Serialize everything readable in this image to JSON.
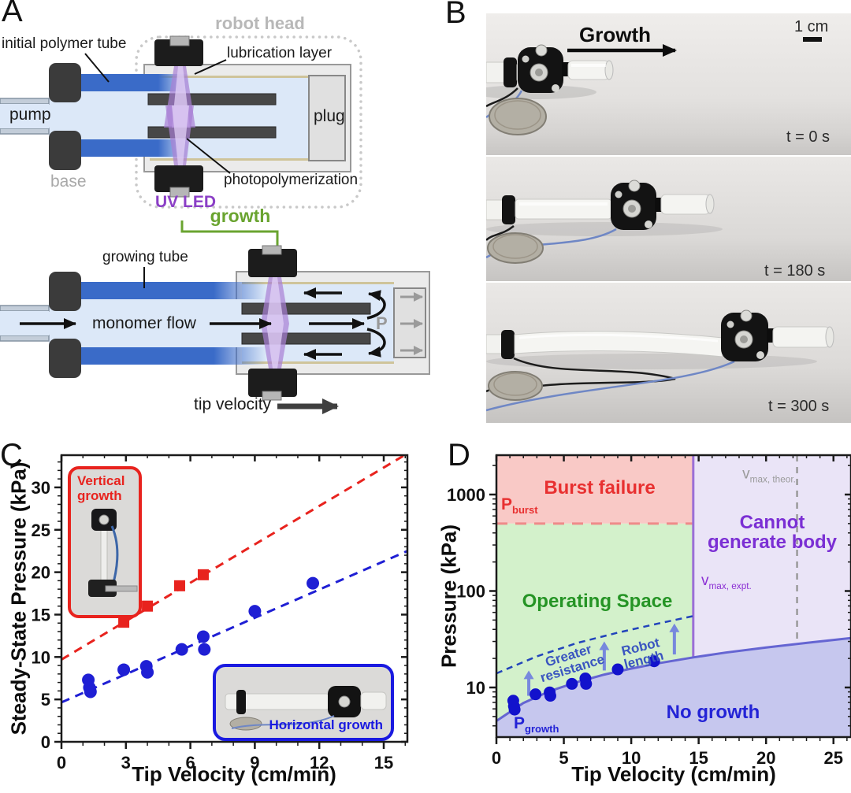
{
  "figure": {
    "background": "#ffffff"
  },
  "panels": {
    "a": {
      "letter": "A",
      "labels": {
        "robot_head": "robot head",
        "initial_polymer_tube": "initial polymer tube",
        "lubrication_layer": "lubrication layer",
        "pump": "pump",
        "plug": "plug",
        "base": "base",
        "uv_led": "UV LED",
        "photopolymerization": "photopolymerization",
        "growth": "growth",
        "growing_tube": "growing tube",
        "monomer_flow": "monomer flow",
        "pressure_symbol": "P",
        "tip_velocity": "tip velocity"
      },
      "colors": {
        "tube_blue": "#3a6bc8",
        "fluid_blue": "#dce8f8",
        "beam_purple": "#a87fd4",
        "shell_gray": "#ebebeb",
        "plug_gray": "#e0e0e0",
        "dark_bar": "#474747",
        "block_black": "#3b3b3b",
        "growth_green": "#6aa430",
        "uv_purple": "#8b3fc6"
      }
    },
    "b": {
      "letter": "B",
      "growth_arrow_label": "Growth",
      "scale_bar_label": "1 cm",
      "frames": [
        {
          "time_label": "t = 0 s"
        },
        {
          "time_label": "t = 180 s"
        },
        {
          "time_label": "t = 300 s"
        }
      ]
    },
    "c": {
      "letter": "C",
      "inset_vertical_label": "Vertical growth",
      "inset_horizontal_label": "Horizontal growth"
    },
    "d": {
      "letter": "D"
    }
  },
  "chart_data": [
    {
      "id": "panel_c",
      "type": "scatter",
      "title": "",
      "xlabel": "Tip Velocity (cm/min)",
      "ylabel": "Steady-State Pressure (kPa)",
      "xlim": [
        0,
        16.1
      ],
      "ylim": [
        0,
        33.8
      ],
      "xticks": [
        0,
        3,
        6,
        9,
        12,
        15
      ],
      "yticks": [
        0,
        5,
        10,
        15,
        20,
        25,
        30
      ],
      "x_minor_step": 1,
      "y_minor_step": 1,
      "grid": false,
      "legend_position": "insets",
      "series": [
        {
          "name": "Vertical growth",
          "marker": "square",
          "color": "#e8231e",
          "points": [
            [
              2.9,
              14.1
            ],
            [
              4.0,
              16.0
            ],
            [
              5.5,
              18.4
            ],
            [
              6.6,
              19.7
            ]
          ],
          "fit_line": {
            "style": "dashed",
            "from": [
              0,
              9.7
            ],
            "to": [
              16.1,
              34.0
            ]
          }
        },
        {
          "name": "Horizontal growth",
          "marker": "circle",
          "color": "#1f1fd4",
          "points": [
            [
              1.25,
              7.3
            ],
            [
              1.3,
              6.4
            ],
            [
              1.35,
              5.9
            ],
            [
              2.9,
              8.5
            ],
            [
              3.95,
              8.9
            ],
            [
              4.0,
              8.2
            ],
            [
              5.6,
              10.9
            ],
            [
              6.6,
              12.4
            ],
            [
              6.65,
              10.9
            ],
            [
              9.0,
              15.4
            ],
            [
              11.7,
              18.7
            ]
          ],
          "fit_line": {
            "style": "dashed",
            "from": [
              0,
              4.65
            ],
            "to": [
              16.1,
              22.5
            ]
          }
        }
      ]
    },
    {
      "id": "panel_d",
      "type": "scatter",
      "scale": "log-y",
      "title": "",
      "xlabel": "Tip Velocity (cm/min)",
      "ylabel": "Pressure (kPa)",
      "xlim": [
        0,
        26.3
      ],
      "ylim": [
        3.06,
        2560
      ],
      "xticks": [
        0,
        5,
        10,
        15,
        20,
        25
      ],
      "yticks": [
        10,
        100,
        1000
      ],
      "x_minor_step": 1,
      "boundaries": {
        "p_burst_kpa": 500,
        "p_growth_kpa": 4.5,
        "v_max_expt_cm_min": 14.6,
        "v_max_theor_cm_min": 22.3
      },
      "growth_curve": [
        [
          0,
          4.5
        ],
        [
          2,
          6.9
        ],
        [
          4,
          9.2
        ],
        [
          6,
          11.4
        ],
        [
          8,
          13.6
        ],
        [
          10,
          15.7
        ],
        [
          12,
          17.8
        ],
        [
          14.6,
          20.5
        ],
        [
          17,
          23
        ],
        [
          20,
          26
        ],
        [
          23,
          29
        ],
        [
          26.3,
          32.5
        ]
      ],
      "resistance_curve": [
        [
          0,
          14
        ],
        [
          3,
          21
        ],
        [
          6,
          29
        ],
        [
          9,
          37
        ],
        [
          12,
          46
        ],
        [
          14.6,
          55
        ]
      ],
      "arrows": [
        [
          2.4,
          8.2,
          15
        ],
        [
          8.0,
          15,
          30
        ],
        [
          13.2,
          22,
          46
        ]
      ],
      "points": [
        [
          1.25,
          7.3
        ],
        [
          1.3,
          6.4
        ],
        [
          1.35,
          5.9
        ],
        [
          2.9,
          8.5
        ],
        [
          3.95,
          8.9
        ],
        [
          4.0,
          8.2
        ],
        [
          5.6,
          10.9
        ],
        [
          6.6,
          12.4
        ],
        [
          6.65,
          10.9
        ],
        [
          9.0,
          15.4
        ],
        [
          11.7,
          18.7
        ]
      ],
      "regions": {
        "burst": "Burst failure",
        "cannot_line1": "Cannot",
        "cannot_line2": "generate body",
        "operating": "Operating Space",
        "no_growth": "No growth"
      },
      "annotations": {
        "p_burst": {
          "main": "P",
          "sub": "burst"
        },
        "p_growth": {
          "main": "P",
          "sub": "growth"
        },
        "v_max_theor": {
          "main": "v",
          "sub": "max, theor."
        },
        "v_max_expt": {
          "main": "v",
          "sub": "max, expt."
        },
        "greater_resistance": "Greater resistance",
        "robot_length": "Robot length"
      },
      "colors": {
        "burst_fill": "#f9c9c6",
        "operating_fill": "#d3f1cb",
        "cannot_fill": "#eae4f7",
        "no_growth_fill": "#c6c7ee",
        "growth_curve": "#6565d2",
        "resistance_curve": "#2244bb",
        "burst_line": "#ef8a8a",
        "v_expt_line": "#9b6fd6",
        "v_theor_line": "#9a9a9a",
        "points": "#1212cc",
        "arrow": "#7788dd",
        "burst_text": "#e83030",
        "cannot_text": "#7b2fd4",
        "operating_text": "#259425",
        "no_growth_text": "#2323d6",
        "curve_label_text": "#3a55c0"
      }
    }
  ]
}
